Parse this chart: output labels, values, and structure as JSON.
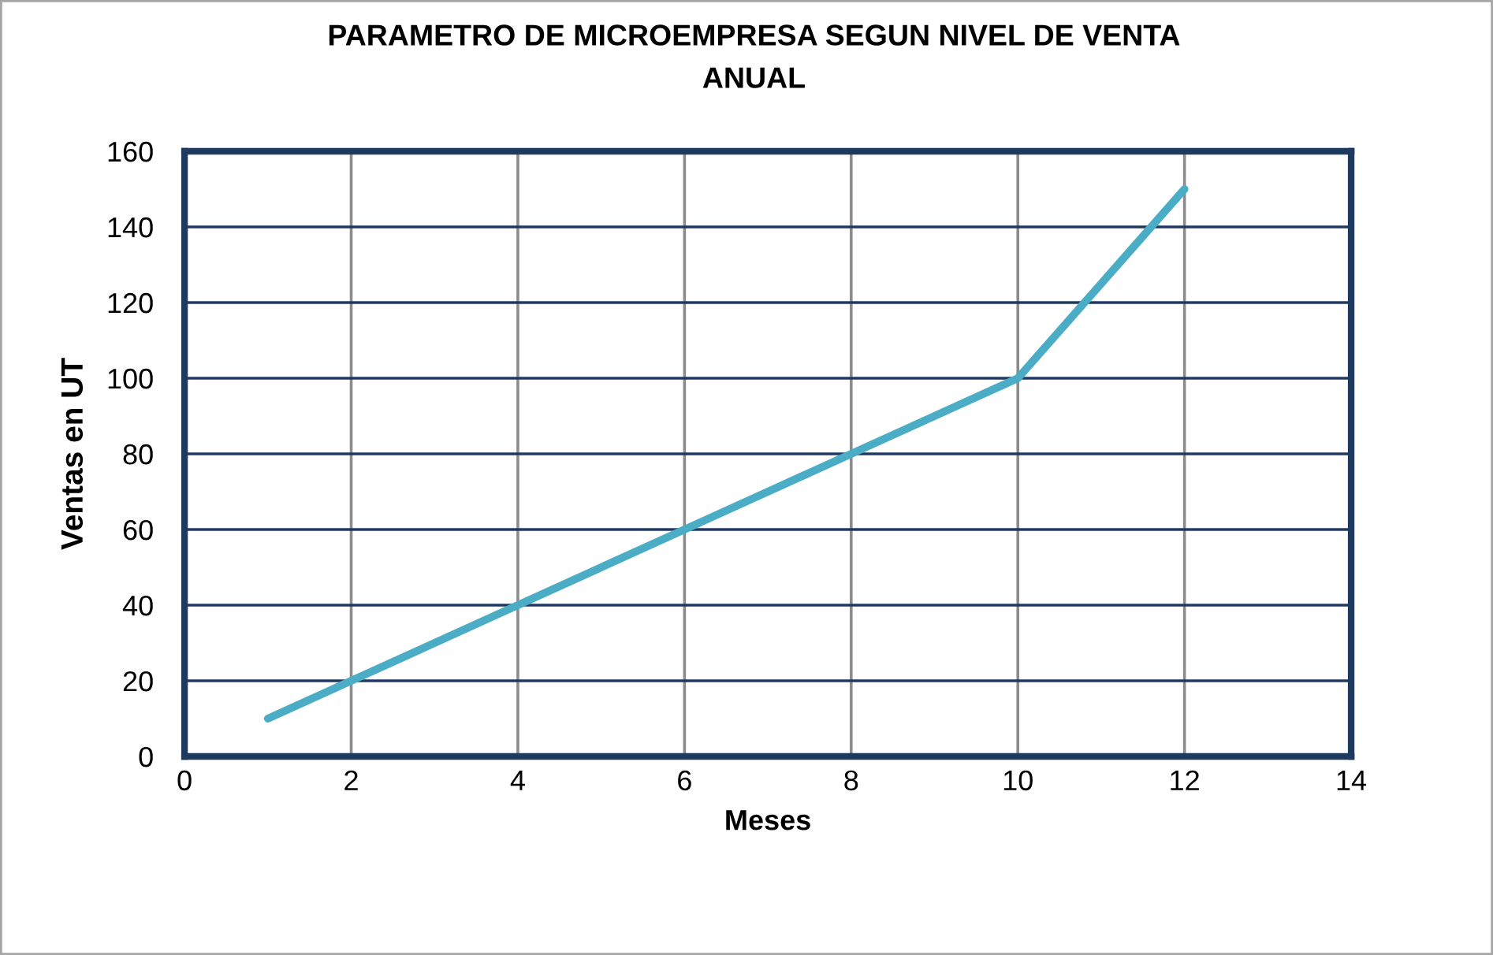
{
  "chart_data": {
    "type": "line",
    "title": "PARAMETRO DE MICROEMPRESA SEGUN NIVEL DE VENTA\nANUAL",
    "xlabel": "Meses",
    "ylabel": "Ventas en UT",
    "x": [
      1,
      2,
      3,
      4,
      5,
      6,
      7,
      8,
      9,
      10,
      11,
      12
    ],
    "series": [
      {
        "color": "#4bacc6",
        "values": [
          10,
          20,
          30,
          40,
          50,
          60,
          70,
          80,
          90,
          100,
          125,
          150
        ]
      }
    ],
    "xlim": [
      0,
      14
    ],
    "xticks": [
      0,
      2,
      4,
      6,
      8,
      10,
      12,
      14
    ],
    "ylim": [
      0,
      160
    ],
    "yticks": [
      0,
      20,
      40,
      60,
      80,
      100,
      120,
      140,
      160
    ],
    "grid": true,
    "line_style": "solid"
  }
}
